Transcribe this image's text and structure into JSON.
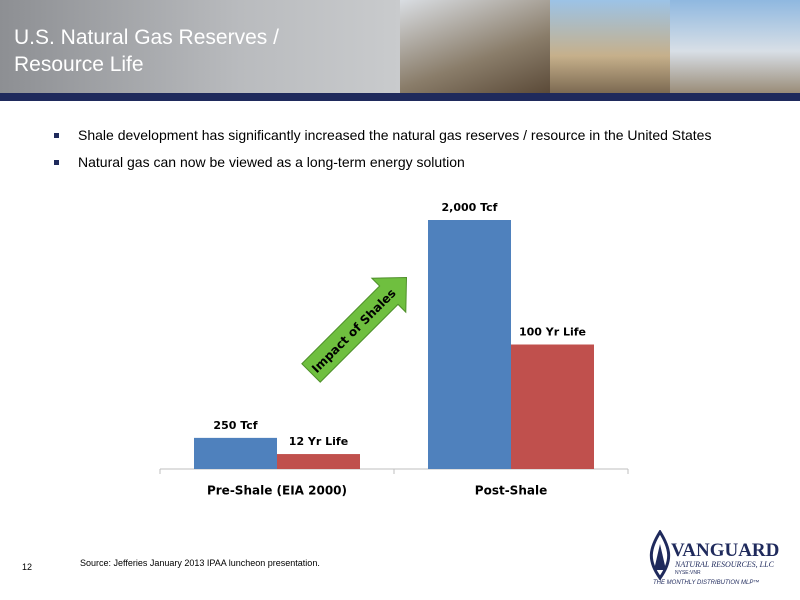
{
  "header": {
    "title": "U.S. Natural Gas Reserves / Resource Life"
  },
  "bullets": [
    "Shale development has significantly increased the natural gas reserves / resource in the United States",
    "Natural gas can now be viewed as a long-term energy solution"
  ],
  "chart_data": {
    "type": "bar",
    "categories": [
      "Pre-Shale (EIA 2000)",
      "Post-Shale"
    ],
    "series": [
      {
        "color": "#4f81bd",
        "values": [
          250,
          2000
        ],
        "value_labels": [
          "250 Tcf",
          "2,000 Tcf"
        ]
      },
      {
        "color": "#c0504d",
        "axis": "y2",
        "values": [
          12,
          100
        ],
        "value_labels": [
          "12 Yr Life",
          "100 Yr Life"
        ]
      }
    ],
    "ylim": [
      0,
      2000
    ],
    "y2lim": [
      0,
      200
    ],
    "annotation": "Impact of Shales"
  },
  "footer": {
    "source": "Source:  Jefferies January 2013 IPAA luncheon presentation.",
    "page_number": "12"
  },
  "logo": {
    "name": "VANGUARD",
    "subtitle": "NATURAL RESOURCES, LLC",
    "ticker": "NYSE:VNR",
    "tagline": "THE MONTHLY DISTRIBUTION MLP™"
  }
}
